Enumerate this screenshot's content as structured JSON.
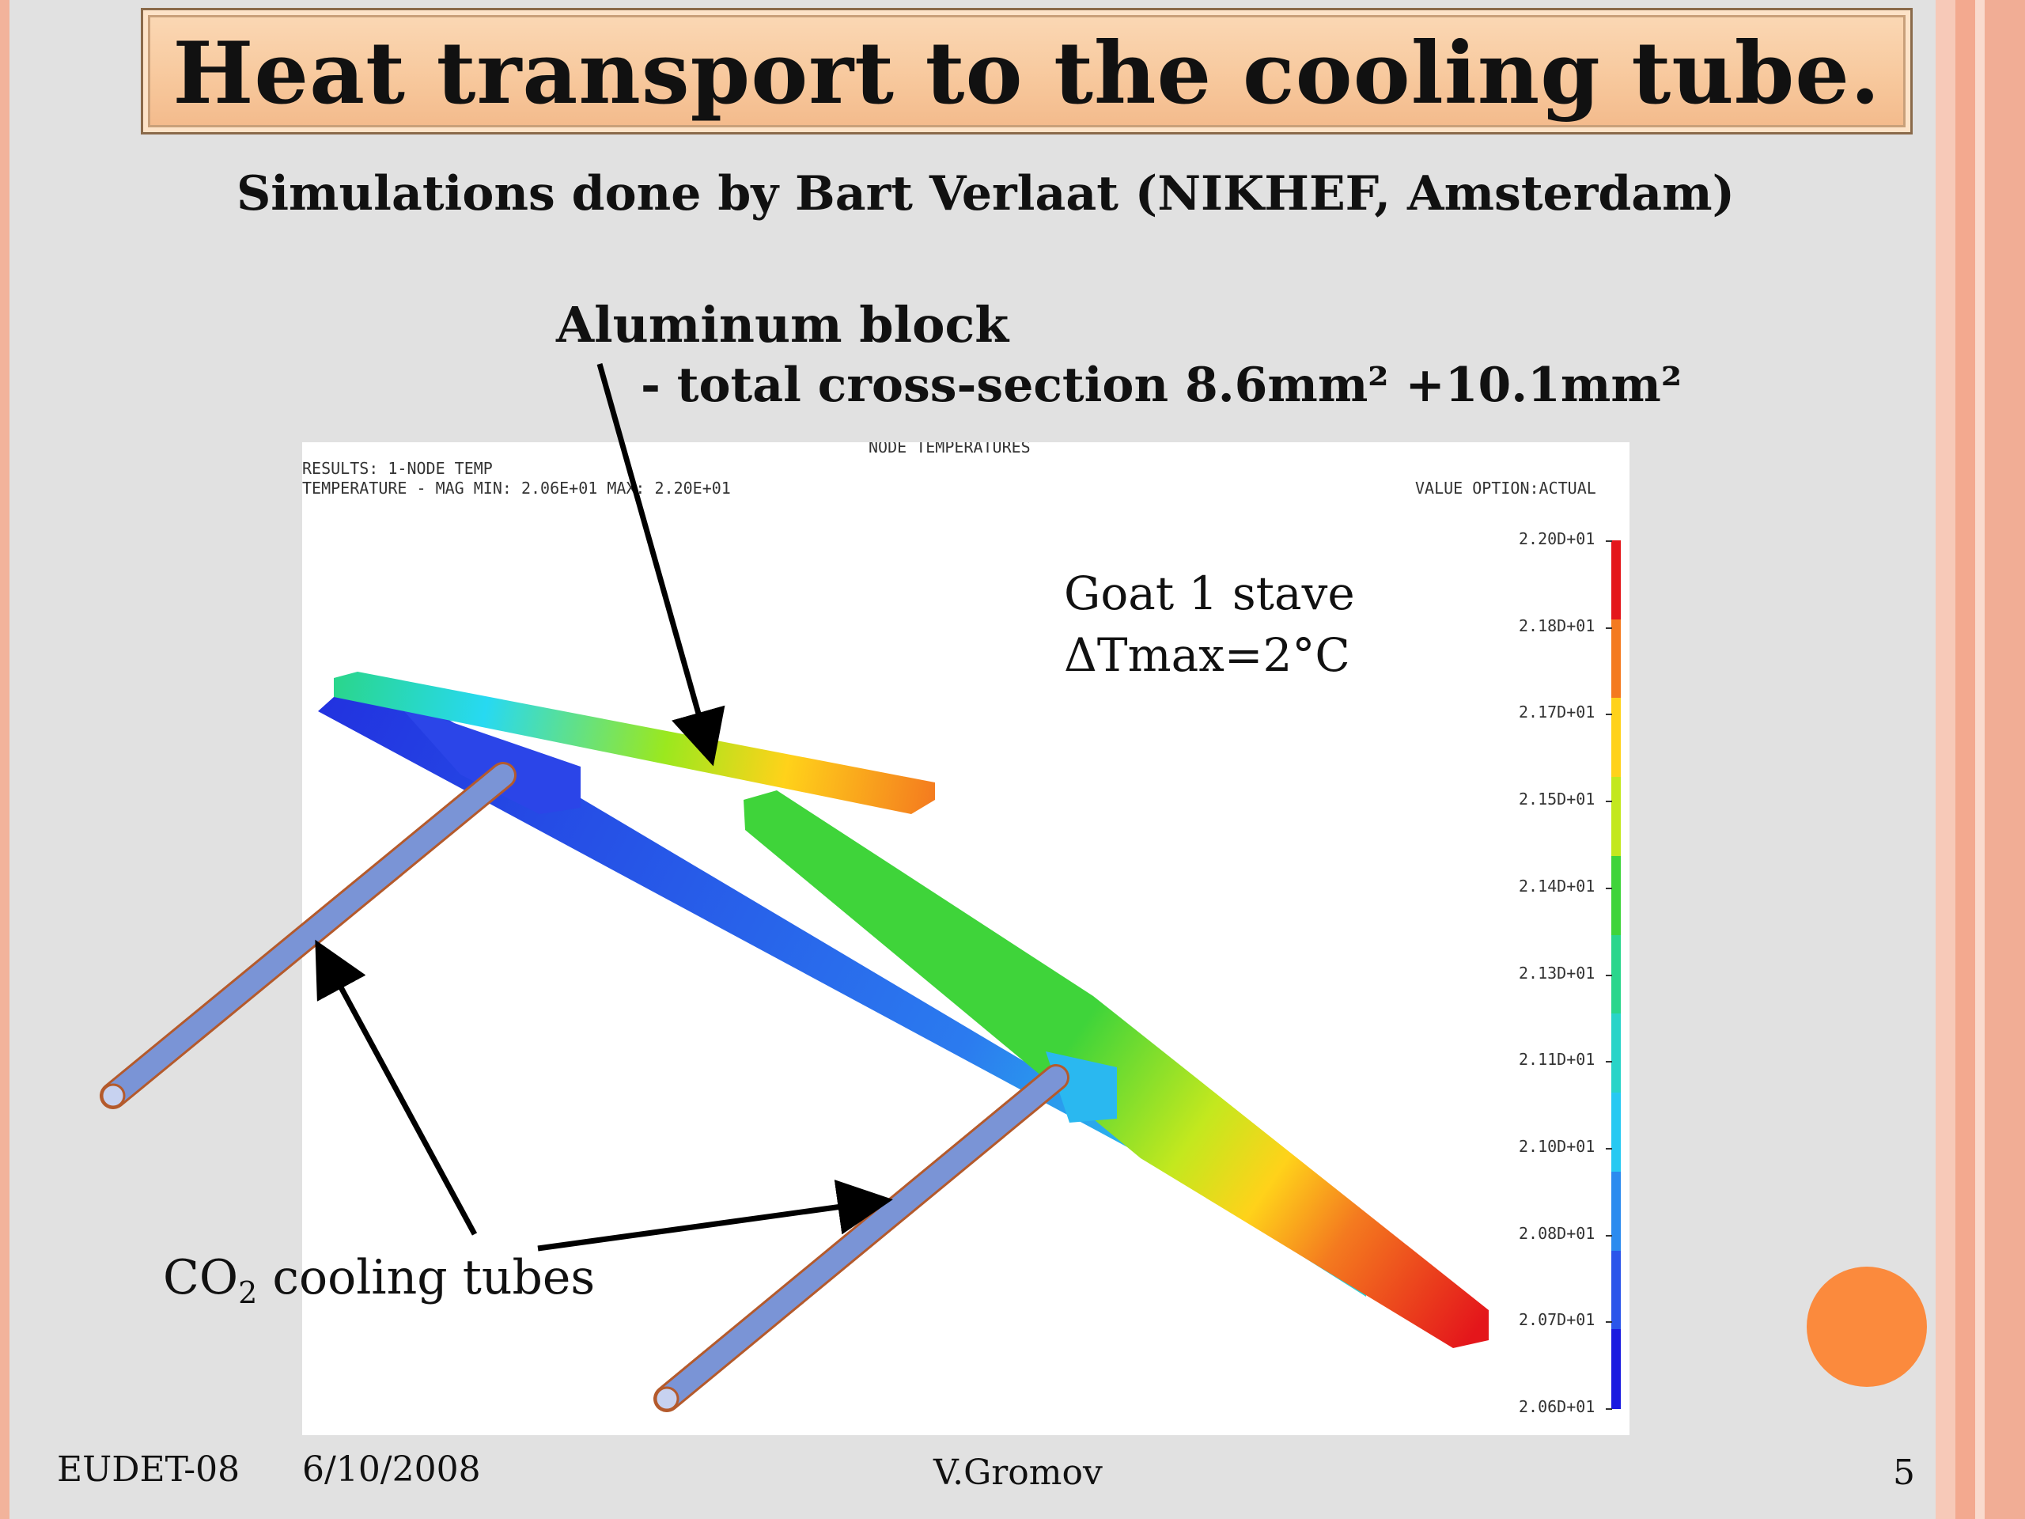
{
  "slide": {
    "title": "Heat transport to the cooling tube.",
    "subtitle": "Simulations done by Bart Verlaat (NIKHEF, Amsterdam)",
    "label_aluminum": "Aluminum block",
    "label_cross_section": "- total cross-section 8.6mm² +10.1mm²",
    "label_goat": "Goat 1 stave",
    "label_delta": "ΔTmax=2°C",
    "label_co2_prefix": "CO",
    "label_co2_sub": "2",
    "label_co2_suffix": " cooling tubes"
  },
  "footer": {
    "event": "EUDET-08",
    "date": "6/10/2008",
    "author": "V.Gromov",
    "page": "5"
  },
  "simulation": {
    "plot_title": "NODE TEMPERATURES",
    "results_line": "RESULTS: 1-NODE TEMP",
    "temperature_line": "TEMPERATURE - MAG MIN: 2.06E+01 MAX: 2.20E+01",
    "value_option": "VALUE OPTION:ACTUAL",
    "scale_labels": [
      "2.20D+01",
      "2.18D+01",
      "2.17D+01",
      "2.15D+01",
      "2.14D+01",
      "2.13D+01",
      "2.11D+01",
      "2.10D+01",
      "2.08D+01",
      "2.07D+01",
      "2.06D+01"
    ],
    "scale_colors": [
      "#e4161b",
      "#f47a1f",
      "#ffd21a",
      "#c3e81e",
      "#3fd43a",
      "#2ad68c",
      "#29d4c8",
      "#27c9f2",
      "#2b8bef",
      "#2b55ea",
      "#1a1ae0"
    ]
  },
  "colors": {
    "background": "#e1e1e1",
    "title_fill": "#f7c79b",
    "tube_fill": "#7a94d6",
    "tube_outline": "#b45a2c",
    "orange_circle": "#fb8a3d",
    "edge_salmon": "#f4b09a"
  }
}
